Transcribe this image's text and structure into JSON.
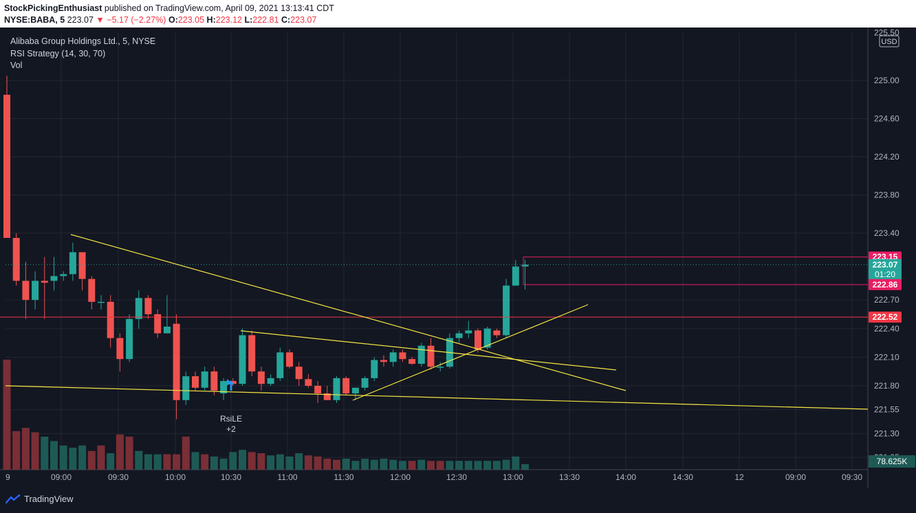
{
  "header": {
    "publisher": "StockPickingEnthusiast",
    "published_text": "published on TradingView.com, April 09, 2021 13:13:41 CDT",
    "symbol": "NYSE:BABA, 5",
    "last": "223.07",
    "change": "−5.17 (−2.27%)",
    "o_label": "O:",
    "o_value": "223.05",
    "h_label": "H:",
    "h_value": "223.12",
    "l_label": "L:",
    "l_value": "222.81",
    "c_label": "C:",
    "c_value": "223.07"
  },
  "legend": {
    "title": "Alibaba Group Holdings Ltd., 5, NYSE",
    "strategy": "RSI Strategy (14, 30, 70)",
    "vol": "Vol"
  },
  "footer": {
    "brand": "TradingView"
  },
  "colors": {
    "bg": "#131722",
    "up": "#26a69a",
    "down": "#ef5350",
    "trendline": "#f5e642",
    "marker": "#e91e63",
    "signal": "#2196f3"
  },
  "chart_data": {
    "type": "candlestick",
    "currency": "USD",
    "y_ticks": [
      225.5,
      225.0,
      224.6,
      224.2,
      223.8,
      223.4,
      222.7,
      222.4,
      222.1,
      221.8,
      221.55,
      221.3,
      221.05
    ],
    "x_ticks": [
      "9",
      "09:00",
      "09:30",
      "10:00",
      "10:30",
      "11:00",
      "11:30",
      "12:00",
      "12:30",
      "13:00",
      "13:30",
      "14:00",
      "14:30",
      "12",
      "09:00",
      "09:30"
    ],
    "ylim": [
      221.0,
      225.6
    ],
    "price_labels": [
      {
        "value": "223.15",
        "color": "#e91e63"
      },
      {
        "value": "223.07",
        "sub": "01:20",
        "color": "#26a69a"
      },
      {
        "value": "222.86",
        "color": "#e91e63"
      },
      {
        "value": "222.52",
        "color": "#f23645"
      }
    ],
    "volume_label": "78.625K",
    "signal": {
      "label": "RsiLE",
      "sub": "+2"
    },
    "candles": [
      {
        "o": 224.85,
        "h": 225.05,
        "l": 223.35,
        "c": 223.35
      },
      {
        "o": 223.35,
        "h": 223.4,
        "l": 222.85,
        "c": 222.9
      },
      {
        "o": 222.9,
        "h": 223.1,
        "l": 222.5,
        "c": 222.7
      },
      {
        "o": 222.7,
        "h": 223.0,
        "l": 222.6,
        "c": 222.9
      },
      {
        "o": 222.9,
        "h": 223.15,
        "l": 222.5,
        "c": 222.88
      },
      {
        "o": 222.9,
        "h": 223.15,
        "l": 222.8,
        "c": 222.95
      },
      {
        "o": 222.95,
        "h": 223.0,
        "l": 222.9,
        "c": 222.97
      },
      {
        "o": 222.97,
        "h": 223.3,
        "l": 222.9,
        "c": 223.2
      },
      {
        "o": 223.2,
        "h": 223.2,
        "l": 222.8,
        "c": 222.92
      },
      {
        "o": 222.92,
        "h": 222.95,
        "l": 222.6,
        "c": 222.68
      },
      {
        "o": 222.68,
        "h": 222.75,
        "l": 222.6,
        "c": 222.68
      },
      {
        "o": 222.68,
        "h": 222.75,
        "l": 222.2,
        "c": 222.3
      },
      {
        "o": 222.3,
        "h": 222.35,
        "l": 221.95,
        "c": 222.08
      },
      {
        "o": 222.08,
        "h": 222.55,
        "l": 222.05,
        "c": 222.5
      },
      {
        "o": 222.5,
        "h": 222.8,
        "l": 222.4,
        "c": 222.72
      },
      {
        "o": 222.72,
        "h": 222.75,
        "l": 222.5,
        "c": 222.55
      },
      {
        "o": 222.55,
        "h": 222.6,
        "l": 222.3,
        "c": 222.35
      },
      {
        "o": 222.35,
        "h": 222.75,
        "l": 222.35,
        "c": 222.42
      },
      {
        "o": 222.45,
        "h": 222.55,
        "l": 221.45,
        "c": 221.65
      },
      {
        "o": 221.65,
        "h": 221.95,
        "l": 221.6,
        "c": 221.9
      },
      {
        "o": 221.9,
        "h": 221.95,
        "l": 221.75,
        "c": 221.78
      },
      {
        "o": 221.78,
        "h": 222.0,
        "l": 221.75,
        "c": 221.95
      },
      {
        "o": 221.95,
        "h": 222.0,
        "l": 221.7,
        "c": 221.75
      },
      {
        "o": 221.72,
        "h": 221.88,
        "l": 221.65,
        "c": 221.85
      },
      {
        "o": 221.85,
        "h": 221.88,
        "l": 221.8,
        "c": 221.82
      },
      {
        "o": 221.82,
        "h": 222.4,
        "l": 221.8,
        "c": 222.33
      },
      {
        "o": 222.33,
        "h": 222.38,
        "l": 221.9,
        "c": 221.95
      },
      {
        "o": 221.95,
        "h": 222.0,
        "l": 221.75,
        "c": 221.82
      },
      {
        "o": 221.82,
        "h": 221.92,
        "l": 221.8,
        "c": 221.88
      },
      {
        "o": 221.88,
        "h": 222.2,
        "l": 221.85,
        "c": 222.15
      },
      {
        "o": 222.15,
        "h": 222.18,
        "l": 221.98,
        "c": 222.0
      },
      {
        "o": 222.0,
        "h": 222.05,
        "l": 221.8,
        "c": 221.87
      },
      {
        "o": 221.87,
        "h": 221.92,
        "l": 221.78,
        "c": 221.8
      },
      {
        "o": 221.8,
        "h": 221.85,
        "l": 221.62,
        "c": 221.72
      },
      {
        "o": 221.72,
        "h": 221.8,
        "l": 221.65,
        "c": 221.65
      },
      {
        "o": 221.65,
        "h": 221.9,
        "l": 221.62,
        "c": 221.88
      },
      {
        "o": 221.88,
        "h": 221.9,
        "l": 221.7,
        "c": 221.72
      },
      {
        "o": 221.72,
        "h": 221.78,
        "l": 221.65,
        "c": 221.78
      },
      {
        "o": 221.78,
        "h": 221.9,
        "l": 221.75,
        "c": 221.88
      },
      {
        "o": 221.88,
        "h": 222.1,
        "l": 221.85,
        "c": 222.07
      },
      {
        "o": 222.07,
        "h": 222.12,
        "l": 222.0,
        "c": 222.05
      },
      {
        "o": 222.05,
        "h": 222.18,
        "l": 222.0,
        "c": 222.15
      },
      {
        "o": 222.15,
        "h": 222.18,
        "l": 222.05,
        "c": 222.08
      },
      {
        "o": 222.08,
        "h": 222.1,
        "l": 222.02,
        "c": 222.03
      },
      {
        "o": 222.03,
        "h": 222.25,
        "l": 222.0,
        "c": 222.22
      },
      {
        "o": 222.22,
        "h": 222.3,
        "l": 221.97,
        "c": 222.0
      },
      {
        "o": 222.0,
        "h": 222.05,
        "l": 221.95,
        "c": 222.0
      },
      {
        "o": 222.0,
        "h": 222.35,
        "l": 221.98,
        "c": 222.3
      },
      {
        "o": 222.3,
        "h": 222.38,
        "l": 222.25,
        "c": 222.35
      },
      {
        "o": 222.35,
        "h": 222.48,
        "l": 222.3,
        "c": 222.38
      },
      {
        "o": 222.38,
        "h": 222.4,
        "l": 222.15,
        "c": 222.18
      },
      {
        "o": 222.2,
        "h": 222.42,
        "l": 222.18,
        "c": 222.4
      },
      {
        "o": 222.38,
        "h": 222.4,
        "l": 222.3,
        "c": 222.33
      },
      {
        "o": 222.33,
        "h": 222.92,
        "l": 222.3,
        "c": 222.85
      },
      {
        "o": 222.85,
        "h": 223.12,
        "l": 222.85,
        "c": 223.05
      },
      {
        "o": 223.05,
        "h": 223.12,
        "l": 222.81,
        "c": 223.07
      }
    ],
    "volumes": [
      {
        "v": 1.0,
        "d": true
      },
      {
        "v": 0.35,
        "d": true
      },
      {
        "v": 0.38,
        "d": true
      },
      {
        "v": 0.34,
        "d": true
      },
      {
        "v": 0.3,
        "d": false
      },
      {
        "v": 0.26,
        "d": false
      },
      {
        "v": 0.22,
        "d": false
      },
      {
        "v": 0.2,
        "d": false
      },
      {
        "v": 0.22,
        "d": false
      },
      {
        "v": 0.17,
        "d": true
      },
      {
        "v": 0.22,
        "d": true
      },
      {
        "v": 0.15,
        "d": false
      },
      {
        "v": 0.32,
        "d": true
      },
      {
        "v": 0.3,
        "d": true
      },
      {
        "v": 0.17,
        "d": false
      },
      {
        "v": 0.14,
        "d": false
      },
      {
        "v": 0.14,
        "d": false
      },
      {
        "v": 0.14,
        "d": true
      },
      {
        "v": 0.14,
        "d": true
      },
      {
        "v": 0.3,
        "d": true
      },
      {
        "v": 0.16,
        "d": false
      },
      {
        "v": 0.14,
        "d": true
      },
      {
        "v": 0.12,
        "d": false
      },
      {
        "v": 0.1,
        "d": false
      },
      {
        "v": 0.16,
        "d": false
      },
      {
        "v": 0.18,
        "d": false
      },
      {
        "v": 0.16,
        "d": true
      },
      {
        "v": 0.15,
        "d": true
      },
      {
        "v": 0.13,
        "d": false
      },
      {
        "v": 0.14,
        "d": false
      },
      {
        "v": 0.12,
        "d": false
      },
      {
        "v": 0.15,
        "d": false
      },
      {
        "v": 0.13,
        "d": true
      },
      {
        "v": 0.12,
        "d": true
      },
      {
        "v": 0.1,
        "d": true
      },
      {
        "v": 0.09,
        "d": true
      },
      {
        "v": 0.1,
        "d": false
      },
      {
        "v": 0.08,
        "d": false
      },
      {
        "v": 0.1,
        "d": false
      },
      {
        "v": 0.09,
        "d": false
      },
      {
        "v": 0.1,
        "d": false
      },
      {
        "v": 0.09,
        "d": false
      },
      {
        "v": 0.08,
        "d": false
      },
      {
        "v": 0.08,
        "d": true
      },
      {
        "v": 0.09,
        "d": false
      },
      {
        "v": 0.08,
        "d": true
      },
      {
        "v": 0.08,
        "d": true
      },
      {
        "v": 0.08,
        "d": false
      },
      {
        "v": 0.08,
        "d": false
      },
      {
        "v": 0.08,
        "d": false
      },
      {
        "v": 0.08,
        "d": false
      },
      {
        "v": 0.08,
        "d": false
      },
      {
        "v": 0.08,
        "d": false
      },
      {
        "v": 0.09,
        "d": false
      },
      {
        "v": 0.12,
        "d": false
      },
      {
        "v": 0.05,
        "d": false
      }
    ],
    "trendlines": [
      {
        "x1": 103,
        "y1": 341,
        "x2": 910,
        "y2": 568
      },
      {
        "x1": 350,
        "y1": 481,
        "x2": 896,
        "y2": 538
      },
      {
        "x1": 8,
        "y1": 561,
        "x2": 1262,
        "y2": 595
      },
      {
        "x1": 513,
        "y1": 582,
        "x2": 855,
        "y2": 443
      }
    ]
  }
}
